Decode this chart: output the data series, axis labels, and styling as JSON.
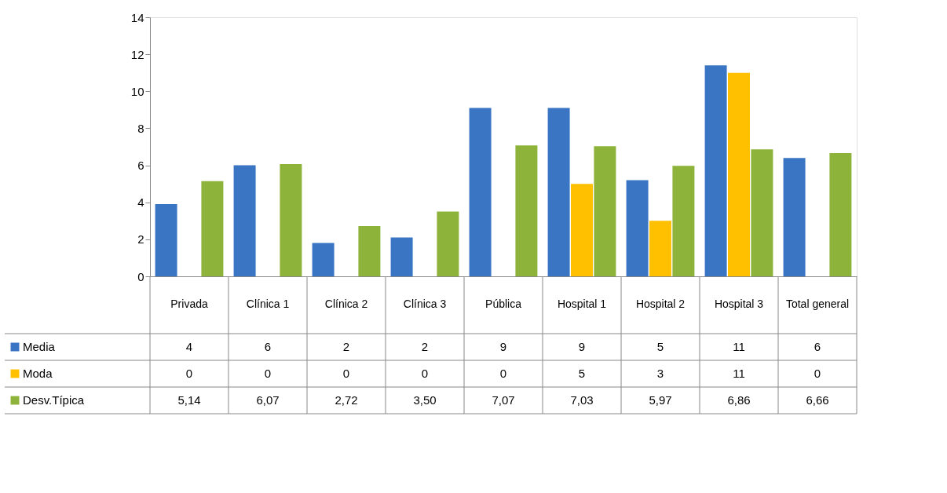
{
  "chart_data": {
    "type": "bar",
    "categories": [
      "Privada",
      "Clínica 1",
      "Clínica 2",
      "Clínica 3",
      "Pública",
      "Hospital 1",
      "Hospital 2",
      "Hospital 3",
      "Total general"
    ],
    "series": [
      {
        "name": "Media",
        "color": "#3a75c4",
        "values": [
          3.9,
          6.0,
          1.8,
          2.1,
          9.1,
          9.1,
          5.2,
          11.4,
          6.4
        ],
        "value_labels": [
          "4",
          "6",
          "2",
          "2",
          "9",
          "9",
          "5",
          "11",
          "6"
        ]
      },
      {
        "name": "Moda",
        "color": "#ffc000",
        "values": [
          0,
          0,
          0,
          0,
          0,
          5,
          3,
          11,
          0
        ],
        "value_labels": [
          "0",
          "0",
          "0",
          "0",
          "0",
          "5",
          "3",
          "11",
          "0"
        ]
      },
      {
        "name": "Desv.Típica",
        "color": "#8db33a",
        "values": [
          5.14,
          6.07,
          2.72,
          3.5,
          7.07,
          7.03,
          5.97,
          6.86,
          6.66
        ],
        "value_labels": [
          "5,14",
          "6,07",
          "2,72",
          "3,50",
          "7,07",
          "7,03",
          "5,97",
          "6,86",
          "6,66"
        ]
      }
    ],
    "ylim": [
      0,
      14
    ],
    "yticks": [
      0,
      2,
      4,
      6,
      8,
      10,
      12,
      14
    ],
    "grid": false,
    "legend": "bottom"
  }
}
